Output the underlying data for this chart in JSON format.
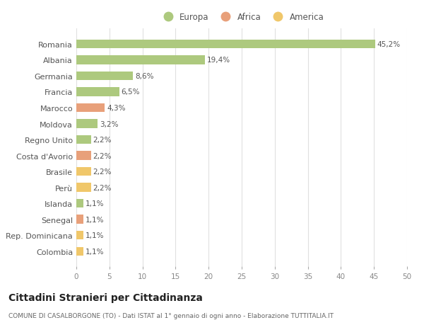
{
  "categories": [
    "Colombia",
    "Rep. Dominicana",
    "Senegal",
    "Islanda",
    "Perù",
    "Brasile",
    "Costa d'Avorio",
    "Regno Unito",
    "Moldova",
    "Marocco",
    "Francia",
    "Germania",
    "Albania",
    "Romania"
  ],
  "values": [
    1.1,
    1.1,
    1.1,
    1.1,
    2.2,
    2.2,
    2.2,
    2.2,
    3.2,
    4.3,
    6.5,
    8.6,
    19.4,
    45.2
  ],
  "labels": [
    "1,1%",
    "1,1%",
    "1,1%",
    "1,1%",
    "2,2%",
    "2,2%",
    "2,2%",
    "2,2%",
    "3,2%",
    "4,3%",
    "6,5%",
    "8,6%",
    "19,4%",
    "45,2%"
  ],
  "continents": [
    "America",
    "America",
    "Africa",
    "Europa",
    "America",
    "America",
    "Africa",
    "Europa",
    "Europa",
    "Africa",
    "Europa",
    "Europa",
    "Europa",
    "Europa"
  ],
  "colors": {
    "Europa": "#adc97e",
    "Africa": "#e8a07a",
    "America": "#f0c76a"
  },
  "xlim": [
    0,
    50
  ],
  "xticks": [
    0,
    5,
    10,
    15,
    20,
    25,
    30,
    35,
    40,
    45,
    50
  ],
  "title": "Cittadini Stranieri per Cittadinanza",
  "subtitle": "COMUNE DI CASALBORGONE (TO) - Dati ISTAT al 1° gennaio di ogni anno - Elaborazione TUTTITALIA.IT",
  "background_color": "#ffffff",
  "grid_color": "#e0e0e0",
  "bar_height": 0.55,
  "label_fontsize": 7.5,
  "ytick_fontsize": 8,
  "xtick_fontsize": 7.5,
  "legend_fontsize": 8.5,
  "title_fontsize": 10,
  "subtitle_fontsize": 6.5
}
